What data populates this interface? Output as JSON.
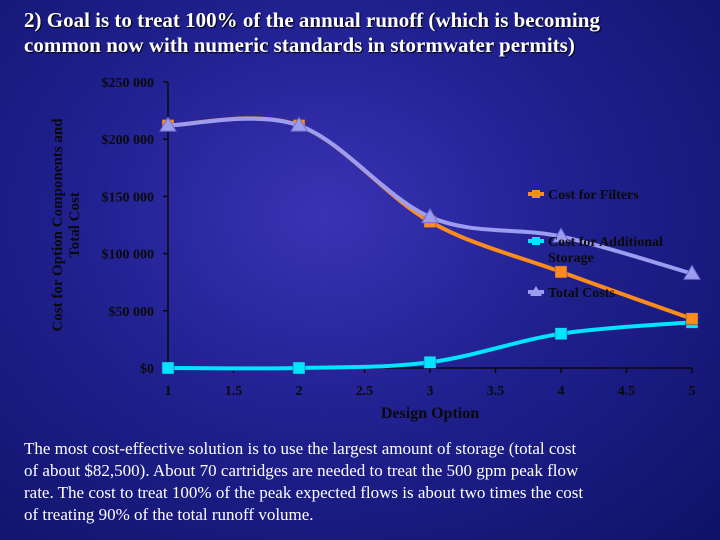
{
  "heading": {
    "line1": "2) Goal is to treat 100% of the annual runoff (which is becoming",
    "line2": "common now with numeric standards in stormwater permits)"
  },
  "chart_data": {
    "type": "line",
    "title": "",
    "xlabel": "Design Option",
    "ylabel_lines": [
      "Cost for Option Components and",
      "Total Cost"
    ],
    "xlim": [
      1,
      5
    ],
    "ylim": [
      0,
      250000
    ],
    "x_ticks": [
      1,
      1.5,
      2,
      2.5,
      3,
      3.5,
      4,
      4.5,
      5
    ],
    "x_tick_labels": [
      "1",
      "1.5",
      "2",
      "2.5",
      "3",
      "3.5",
      "4",
      "4.5",
      "5"
    ],
    "y_ticks": [
      0,
      50000,
      100000,
      150000,
      200000,
      250000
    ],
    "y_tick_labels": [
      "$0",
      "$50 000",
      "$100 000",
      "$150 000",
      "$200 000",
      "$250 000"
    ],
    "x": [
      1,
      2,
      3,
      4,
      5
    ],
    "series": [
      {
        "name": "Cost for Filters",
        "color": "#ff8c1a",
        "marker": "square",
        "values": [
          212000,
          212000,
          128000,
          84000,
          43000
        ]
      },
      {
        "name": "Cost for Additional Storage",
        "color": "#00e5ff",
        "marker": "square",
        "values": [
          0,
          0,
          5000,
          30000,
          40000
        ]
      },
      {
        "name": "Total Costs",
        "color": "#9c9cf0",
        "marker": "triangle",
        "values": [
          212000,
          212000,
          132000,
          115000,
          82500
        ]
      }
    ],
    "legend_position": "right",
    "grid": false
  },
  "caption": {
    "line1": "The most cost-effective solution is to use the largest amount of storage (total cost",
    "line2": "of about $82,500). About 70 cartridges are needed to treat the 500 gpm peak flow",
    "line3": "rate. The cost to treat 100% of the peak expected flows is about two times the cost",
    "line4": "of treating 90% of the total runoff volume."
  }
}
